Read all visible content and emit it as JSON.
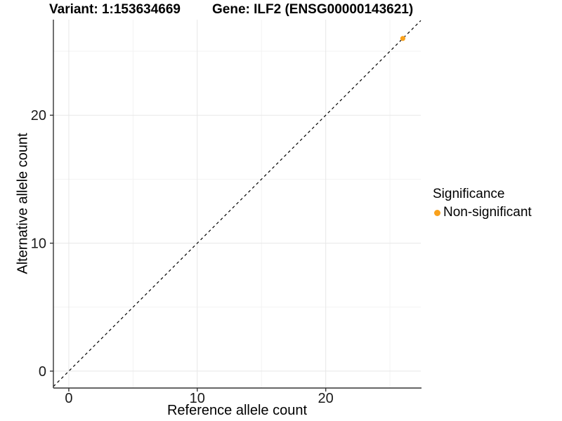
{
  "figure": {
    "title_variant": "Variant: 1:153634669",
    "title_gene": "Gene: ILF2 (ENSG00000143621)"
  },
  "chart_data": {
    "type": "scatter",
    "title": "Variant: 1:153634669   Gene: ILF2 (ENSG00000143621)",
    "xlabel": "Reference allele count",
    "ylabel": "Alternative allele count",
    "xlim": [
      -1.2,
      27.4
    ],
    "ylim": [
      -1.32,
      27.47
    ],
    "xticks": [
      0,
      10,
      20
    ],
    "yticks": [
      0,
      10,
      20
    ],
    "xticks_minor": [
      5,
      15,
      25
    ],
    "yticks_minor": [
      5,
      15,
      25
    ],
    "grid": "major+minor",
    "reference_line": {
      "type": "identity y=x",
      "style": "dashed",
      "color": "#000000"
    },
    "series": [
      {
        "name": "Non-significant",
        "color": "#F9A11B",
        "points": [
          {
            "x": 26,
            "y": 26
          }
        ]
      }
    ],
    "legend": {
      "title": "Significance",
      "position": "right",
      "items": [
        {
          "label": "Non-significant",
          "color": "#F9A11B"
        }
      ]
    }
  },
  "style_colors": {
    "grid_major": "#E7E7E7",
    "grid_minor": "#F3F3F3",
    "axis_line": "#333333",
    "tick_text": "#1a1a1a"
  }
}
